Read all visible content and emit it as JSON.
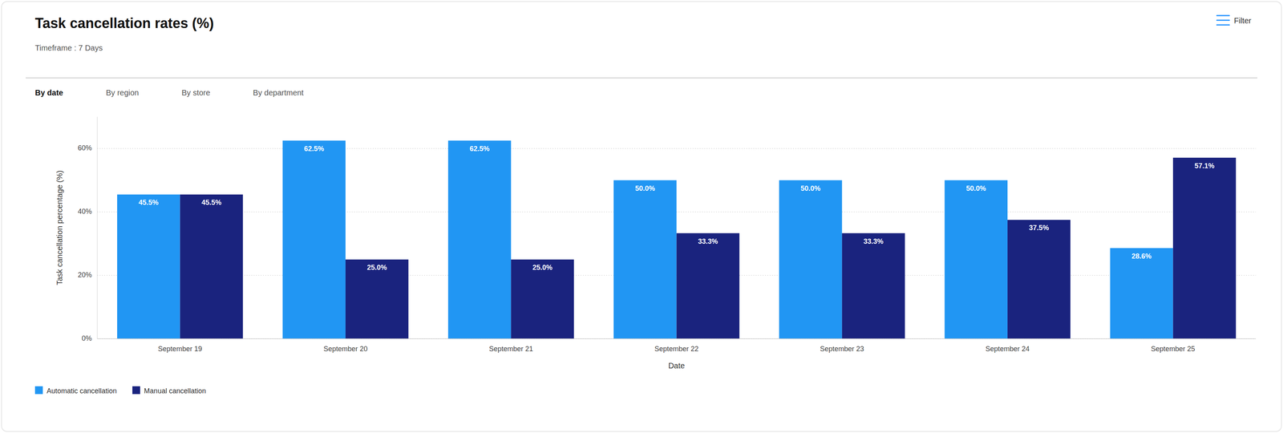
{
  "chart_data": {
    "type": "bar",
    "title": "Task cancellation rates (%)",
    "subtitle": "Timeframe : 7 Days",
    "annotations": [
      "By date",
      "By region",
      "By store",
      "By department",
      "Filter"
    ],
    "xlabel": "Date",
    "ylabel": "Task cancellation percentage (%)",
    "categories": [
      "September 19",
      "September 20",
      "September 21",
      "September 22",
      "September 23",
      "September 24",
      "September 25"
    ],
    "series": [
      {
        "name": "Automatic cancellation",
        "color": "#2196F3",
        "values": [
          45.5,
          62.5,
          62.5,
          50.0,
          50.0,
          50.0,
          28.6
        ],
        "value_labels": [
          "45.5%",
          "62.5%",
          "62.5%",
          "50.0%",
          "50.0%",
          "50.0%",
          "28.6%"
        ]
      },
      {
        "name": "Manual cancellation",
        "color": "#1A237E",
        "values": [
          45.5,
          25.0,
          25.0,
          33.3,
          33.3,
          37.5,
          57.1
        ],
        "value_labels": [
          "45.5%",
          "25.0%",
          "25.0%",
          "33.3%",
          "33.3%",
          "37.5%",
          "57.1%"
        ]
      }
    ],
    "ylim": [
      0,
      70
    ],
    "yticks": [
      {
        "value": 0,
        "label": "0%"
      },
      {
        "value": 20,
        "label": "20%"
      },
      {
        "value": 40,
        "label": "40%"
      },
      {
        "value": 60,
        "label": "60%"
      }
    ],
    "grid": true,
    "legend": "bottom",
    "data_labels": true
  }
}
